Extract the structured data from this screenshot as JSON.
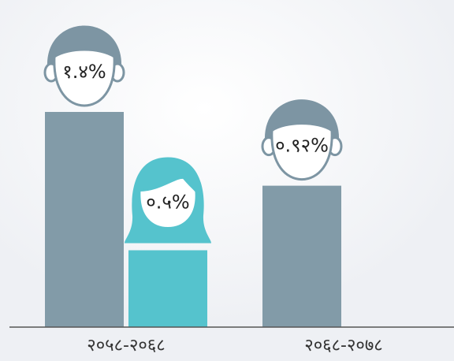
{
  "chart_data": {
    "type": "bar",
    "categories": [
      "२०५८-२०६८",
      "२०६८-२०७८"
    ],
    "series": [
      {
        "color": "#829ba8",
        "hair": "#7d95a3",
        "values": [
          1.4,
          0.92
        ],
        "value_labels": [
          "१.४%",
          "०.९२%"
        ]
      },
      {
        "color": "#55c3cd",
        "hair": "#55c3cd",
        "values": [
          0.5,
          null
        ],
        "value_labels": [
          "०.५%",
          null
        ]
      }
    ],
    "ylim": [
      0,
      2.1
    ]
  }
}
